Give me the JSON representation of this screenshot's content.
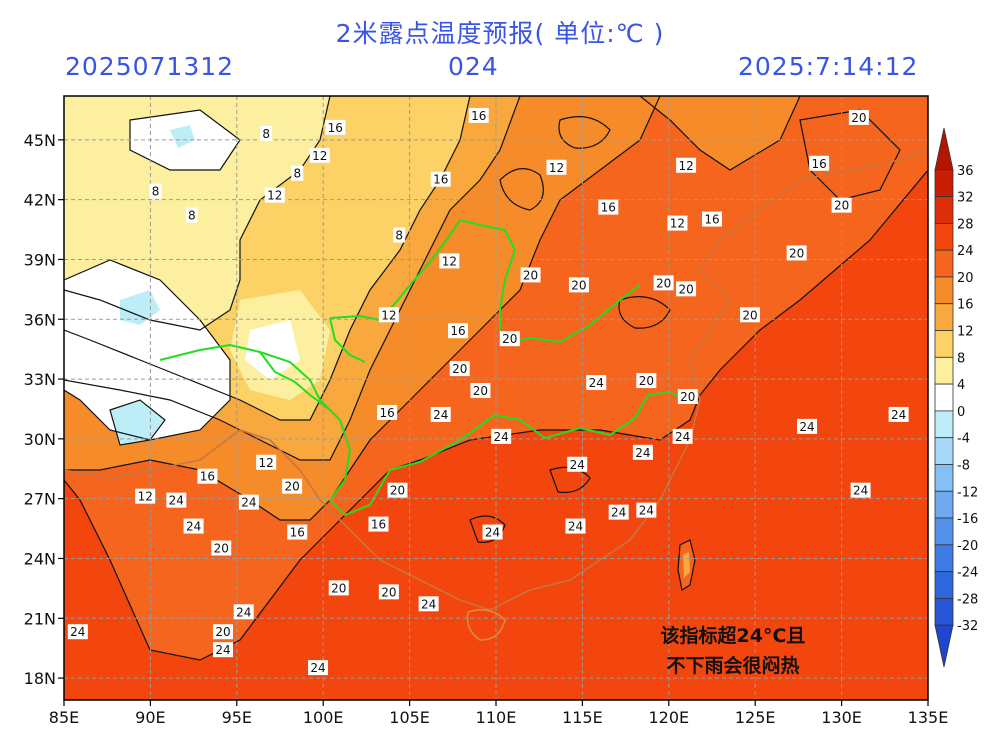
{
  "header": {
    "title": "2米露点温度预报( 单位:℃ )",
    "init_time": "2025071312",
    "lead_hours": "024",
    "valid_time": "2025:7:14:12"
  },
  "map": {
    "lon_labels": [
      "85E",
      "90E",
      "95E",
      "100E",
      "105E",
      "110E",
      "115E",
      "120E",
      "125E",
      "130E",
      "135E"
    ],
    "lat_labels": [
      "45N",
      "42N",
      "39N",
      "36N",
      "33N",
      "30N",
      "27N",
      "24N",
      "21N",
      "18N"
    ],
    "contour_labels": [
      {
        "text": "16",
        "lon": 109,
        "lat": 46.2
      },
      {
        "text": "20",
        "lon": 131,
        "lat": 46.1
      },
      {
        "text": "16",
        "lon": 100.7,
        "lat": 45.6
      },
      {
        "text": "8",
        "lon": 96.7,
        "lat": 45.3
      },
      {
        "text": "12",
        "lon": 99.8,
        "lat": 44.2
      },
      {
        "text": "12",
        "lon": 113.5,
        "lat": 43.6
      },
      {
        "text": "12",
        "lon": 121,
        "lat": 43.7
      },
      {
        "text": "16",
        "lon": 128.7,
        "lat": 43.8
      },
      {
        "text": "8",
        "lon": 98.5,
        "lat": 43.3
      },
      {
        "text": "16",
        "lon": 106.8,
        "lat": 43
      },
      {
        "text": "8",
        "lon": 90.3,
        "lat": 42.4
      },
      {
        "text": "12",
        "lon": 97.2,
        "lat": 42.2
      },
      {
        "text": "8",
        "lon": 92.4,
        "lat": 41.2
      },
      {
        "text": "16",
        "lon": 116.5,
        "lat": 41.6
      },
      {
        "text": "12",
        "lon": 120.5,
        "lat": 40.8
      },
      {
        "text": "16",
        "lon": 122.5,
        "lat": 41
      },
      {
        "text": "20",
        "lon": 130,
        "lat": 41.7
      },
      {
        "text": "8",
        "lon": 104.4,
        "lat": 40.2
      },
      {
        "text": "12",
        "lon": 107.3,
        "lat": 38.9
      },
      {
        "text": "20",
        "lon": 127.4,
        "lat": 39.3
      },
      {
        "text": "20",
        "lon": 112,
        "lat": 38.2
      },
      {
        "text": "20",
        "lon": 114.8,
        "lat": 37.7
      },
      {
        "text": "20",
        "lon": 119.7,
        "lat": 37.8
      },
      {
        "text": "20",
        "lon": 121,
        "lat": 37.5
      },
      {
        "text": "12",
        "lon": 103.8,
        "lat": 36.2
      },
      {
        "text": "16",
        "lon": 107.8,
        "lat": 35.4
      },
      {
        "text": "20",
        "lon": 124.7,
        "lat": 36.2
      },
      {
        "text": "20",
        "lon": 110.8,
        "lat": 35
      },
      {
        "text": "20",
        "lon": 107.9,
        "lat": 33.5
      },
      {
        "text": "24",
        "lon": 115.8,
        "lat": 32.8
      },
      {
        "text": "20",
        "lon": 118.7,
        "lat": 32.9
      },
      {
        "text": "20",
        "lon": 109.1,
        "lat": 32.4
      },
      {
        "text": "20",
        "lon": 121.1,
        "lat": 32.1
      },
      {
        "text": "16",
        "lon": 103.7,
        "lat": 31.3
      },
      {
        "text": "24",
        "lon": 106.8,
        "lat": 31.2
      },
      {
        "text": "24",
        "lon": 128,
        "lat": 30.6
      },
      {
        "text": "24",
        "lon": 133.3,
        "lat": 31.2
      },
      {
        "text": "24",
        "lon": 110.3,
        "lat": 30.1
      },
      {
        "text": "24",
        "lon": 120.8,
        "lat": 30.1
      },
      {
        "text": "24",
        "lon": 118.5,
        "lat": 29.3
      },
      {
        "text": "24",
        "lon": 114.7,
        "lat": 28.7
      },
      {
        "text": "12",
        "lon": 96.7,
        "lat": 28.8
      },
      {
        "text": "16",
        "lon": 93.3,
        "lat": 28.1
      },
      {
        "text": "20",
        "lon": 98.2,
        "lat": 27.6
      },
      {
        "text": "20",
        "lon": 104.3,
        "lat": 27.4
      },
      {
        "text": "24",
        "lon": 131.1,
        "lat": 27.4
      },
      {
        "text": "12",
        "lon": 89.7,
        "lat": 27.1
      },
      {
        "text": "24",
        "lon": 91.5,
        "lat": 26.9
      },
      {
        "text": "24",
        "lon": 95.7,
        "lat": 26.8
      },
      {
        "text": "24",
        "lon": 117.1,
        "lat": 26.3
      },
      {
        "text": "24",
        "lon": 118.7,
        "lat": 26.4
      },
      {
        "text": "16",
        "lon": 103.2,
        "lat": 25.7
      },
      {
        "text": "24",
        "lon": 92.5,
        "lat": 25.6
      },
      {
        "text": "16",
        "lon": 98.5,
        "lat": 25.3
      },
      {
        "text": "24",
        "lon": 114.6,
        "lat": 25.6
      },
      {
        "text": "24",
        "lon": 109.8,
        "lat": 25.3
      },
      {
        "text": "20",
        "lon": 94.1,
        "lat": 24.5
      },
      {
        "text": "20",
        "lon": 100.9,
        "lat": 22.5
      },
      {
        "text": "20",
        "lon": 103.8,
        "lat": 22.3
      },
      {
        "text": "24",
        "lon": 106.1,
        "lat": 21.7
      },
      {
        "text": "24",
        "lon": 95.4,
        "lat": 21.3
      },
      {
        "text": "20",
        "lon": 94.2,
        "lat": 20.3
      },
      {
        "text": "24",
        "lon": 85.8,
        "lat": 20.3
      },
      {
        "text": "24",
        "lon": 94.2,
        "lat": 19.4
      },
      {
        "text": "24",
        "lon": 99.7,
        "lat": 18.5
      }
    ]
  },
  "legend": {
    "labels": [
      "36",
      "32",
      "28",
      "24",
      "20",
      "16",
      "12",
      "8",
      "4",
      "0",
      "-4",
      "-8",
      "-12",
      "-16",
      "-20",
      "-24",
      "-28",
      "-32"
    ],
    "colors": [
      "#b51500",
      "#c81e04",
      "#de2e08",
      "#f2460e",
      "#f5651d",
      "#f68c29",
      "#f8a83c",
      "#fcd267",
      "#fcf0a0",
      "#ffffff",
      "#bdeef8",
      "#a8d8f7",
      "#84c0f3",
      "#6ea8ef",
      "#5592ea",
      "#3f7be4",
      "#2f67dd",
      "#2855d6",
      "#1e46cf"
    ]
  },
  "annotation": {
    "line1": "该指标超24°C且",
    "line2": "不下雨会很闷热"
  },
  "colors": {
    "header_text": "#3a55e6",
    "boundary_green": "#22dd22",
    "boundary_brown": "#c8763e",
    "grid": "#9a9a9a"
  }
}
